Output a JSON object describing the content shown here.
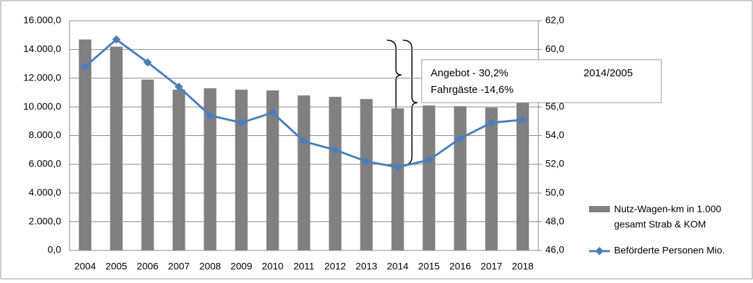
{
  "chart_data": {
    "type": "bar_line",
    "categories": [
      "2004",
      "2005",
      "2006",
      "2007",
      "2008",
      "2009",
      "2010",
      "2011",
      "2012",
      "2013",
      "2014",
      "2015",
      "2016",
      "2017",
      "2018"
    ],
    "series": [
      {
        "name": "Nutz-Wagen-km  in 1.000 gesamt Strab & KOM",
        "color": "#808080",
        "type": "bar",
        "values": [
          14700,
          14200,
          11900,
          11200,
          11300,
          11200,
          11150,
          10800,
          10700,
          10550,
          9900,
          10100,
          10050,
          9950,
          10300
        ]
      },
      {
        "name": "Beförderte Personen Mio.",
        "color": "#4a7ebb",
        "type": "line",
        "axis": "y2",
        "values": [
          58.8,
          60.7,
          59.1,
          57.4,
          55.4,
          54.9,
          55.6,
          53.6,
          53.0,
          52.2,
          51.8,
          52.3,
          53.8,
          54.9,
          55.1
        ]
      }
    ],
    "ylim": [
      0,
      16000
    ],
    "yticks": [
      {
        "value": 0,
        "label": "0,0"
      },
      {
        "value": 2000,
        "label": "2.000,0"
      },
      {
        "value": 4000,
        "label": "4.000,0"
      },
      {
        "value": 6000,
        "label": "6.000,0"
      },
      {
        "value": 8000,
        "label": "8.000,0"
      },
      {
        "value": 10000,
        "label": "10.000,0"
      },
      {
        "value": 12000,
        "label": "12.000,0"
      },
      {
        "value": 14000,
        "label": "14.000,0"
      },
      {
        "value": 16000,
        "label": "16.000,0"
      }
    ],
    "y2lim": [
      46,
      62
    ],
    "y2ticks": [
      {
        "value": 46,
        "label": "46,0"
      },
      {
        "value": 48,
        "label": "48,0"
      },
      {
        "value": 50,
        "label": "50,0"
      },
      {
        "value": 52,
        "label": "52,0"
      },
      {
        "value": 54,
        "label": "54,0"
      },
      {
        "value": 56,
        "label": "56,0"
      },
      {
        "value": 58,
        "label": "58,0"
      },
      {
        "value": 60,
        "label": "60,0"
      },
      {
        "value": 62,
        "label": "62,0"
      }
    ],
    "grid": true,
    "legend": "right",
    "annotations": [
      "Angebot - 30,2%",
      "2014/2005",
      "Fahrgäste -14,6%"
    ]
  }
}
